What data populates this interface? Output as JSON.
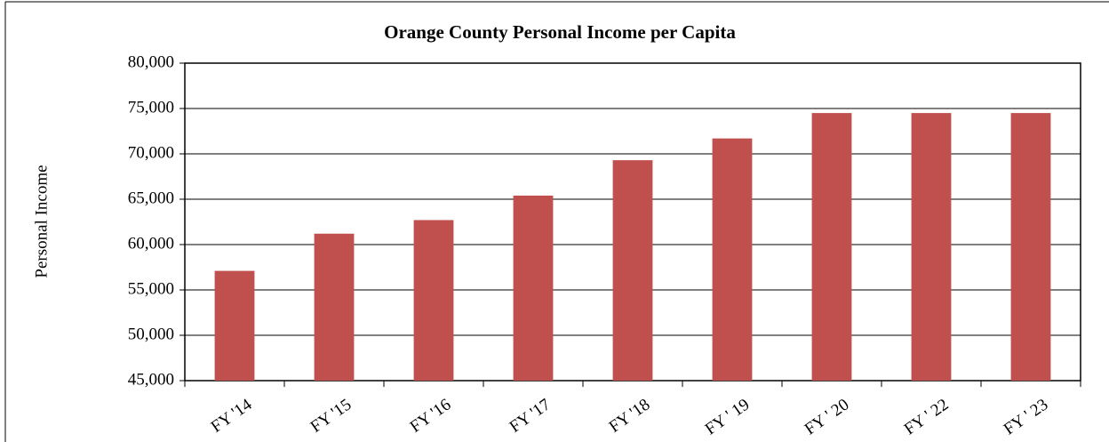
{
  "chart_data": {
    "type": "bar",
    "title": "Orange County Personal Income per Capita",
    "y_label": "Personal Income",
    "categories": [
      "FY '14",
      "FY '15",
      "FY '16",
      "FY '17",
      "FY '18",
      "FY ' 19",
      "FY ' 20",
      "FY ' 22",
      "FY ' 23"
    ],
    "values": [
      57100,
      61200,
      62700,
      65400,
      69300,
      71700,
      74500,
      74500,
      74500
    ],
    "color": "#c0504d",
    "ylim": [
      45000,
      80000
    ],
    "yticks": [
      {
        "value": 45000,
        "label": "45,000"
      },
      {
        "value": 50000,
        "label": "50,000"
      },
      {
        "value": 55000,
        "label": "55,000"
      },
      {
        "value": 60000,
        "label": "60,000"
      },
      {
        "value": 65000,
        "label": "65,000"
      },
      {
        "value": 70000,
        "label": "70,000"
      },
      {
        "value": 75000,
        "label": "75,000"
      },
      {
        "value": 80000,
        "label": "80,000"
      }
    ],
    "grid": true
  }
}
